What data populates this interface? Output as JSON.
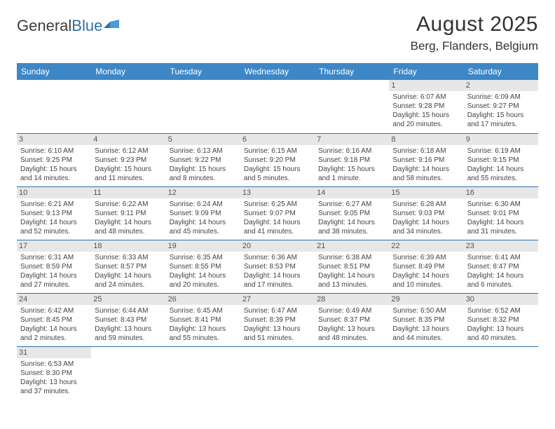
{
  "brand": {
    "name1": "General",
    "name2": "Blue"
  },
  "title": "August 2025",
  "location": "Berg, Flanders, Belgium",
  "colors": {
    "header_bg": "#3d87c7",
    "rule": "#2f6fa7",
    "daybg": "#e7e7e7"
  },
  "weekdays": [
    "Sunday",
    "Monday",
    "Tuesday",
    "Wednesday",
    "Thursday",
    "Friday",
    "Saturday"
  ],
  "startOffset": 5,
  "days": [
    {
      "n": 1,
      "sr": "6:07 AM",
      "ss": "9:28 PM",
      "dl": "15 hours and 20 minutes."
    },
    {
      "n": 2,
      "sr": "6:09 AM",
      "ss": "9:27 PM",
      "dl": "15 hours and 17 minutes."
    },
    {
      "n": 3,
      "sr": "6:10 AM",
      "ss": "9:25 PM",
      "dl": "15 hours and 14 minutes."
    },
    {
      "n": 4,
      "sr": "6:12 AM",
      "ss": "9:23 PM",
      "dl": "15 hours and 11 minutes."
    },
    {
      "n": 5,
      "sr": "6:13 AM",
      "ss": "9:22 PM",
      "dl": "15 hours and 8 minutes."
    },
    {
      "n": 6,
      "sr": "6:15 AM",
      "ss": "9:20 PM",
      "dl": "15 hours and 5 minutes."
    },
    {
      "n": 7,
      "sr": "6:16 AM",
      "ss": "9:18 PM",
      "dl": "15 hours and 1 minute."
    },
    {
      "n": 8,
      "sr": "6:18 AM",
      "ss": "9:16 PM",
      "dl": "14 hours and 58 minutes."
    },
    {
      "n": 9,
      "sr": "6:19 AM",
      "ss": "9:15 PM",
      "dl": "14 hours and 55 minutes."
    },
    {
      "n": 10,
      "sr": "6:21 AM",
      "ss": "9:13 PM",
      "dl": "14 hours and 52 minutes."
    },
    {
      "n": 11,
      "sr": "6:22 AM",
      "ss": "9:11 PM",
      "dl": "14 hours and 48 minutes."
    },
    {
      "n": 12,
      "sr": "6:24 AM",
      "ss": "9:09 PM",
      "dl": "14 hours and 45 minutes."
    },
    {
      "n": 13,
      "sr": "6:25 AM",
      "ss": "9:07 PM",
      "dl": "14 hours and 41 minutes."
    },
    {
      "n": 14,
      "sr": "6:27 AM",
      "ss": "9:05 PM",
      "dl": "14 hours and 38 minutes."
    },
    {
      "n": 15,
      "sr": "6:28 AM",
      "ss": "9:03 PM",
      "dl": "14 hours and 34 minutes."
    },
    {
      "n": 16,
      "sr": "6:30 AM",
      "ss": "9:01 PM",
      "dl": "14 hours and 31 minutes."
    },
    {
      "n": 17,
      "sr": "6:31 AM",
      "ss": "8:59 PM",
      "dl": "14 hours and 27 minutes."
    },
    {
      "n": 18,
      "sr": "6:33 AM",
      "ss": "8:57 PM",
      "dl": "14 hours and 24 minutes."
    },
    {
      "n": 19,
      "sr": "6:35 AM",
      "ss": "8:55 PM",
      "dl": "14 hours and 20 minutes."
    },
    {
      "n": 20,
      "sr": "6:36 AM",
      "ss": "8:53 PM",
      "dl": "14 hours and 17 minutes."
    },
    {
      "n": 21,
      "sr": "6:38 AM",
      "ss": "8:51 PM",
      "dl": "14 hours and 13 minutes."
    },
    {
      "n": 22,
      "sr": "6:39 AM",
      "ss": "8:49 PM",
      "dl": "14 hours and 10 minutes."
    },
    {
      "n": 23,
      "sr": "6:41 AM",
      "ss": "8:47 PM",
      "dl": "14 hours and 6 minutes."
    },
    {
      "n": 24,
      "sr": "6:42 AM",
      "ss": "8:45 PM",
      "dl": "14 hours and 2 minutes."
    },
    {
      "n": 25,
      "sr": "6:44 AM",
      "ss": "8:43 PM",
      "dl": "13 hours and 59 minutes."
    },
    {
      "n": 26,
      "sr": "6:45 AM",
      "ss": "8:41 PM",
      "dl": "13 hours and 55 minutes."
    },
    {
      "n": 27,
      "sr": "6:47 AM",
      "ss": "8:39 PM",
      "dl": "13 hours and 51 minutes."
    },
    {
      "n": 28,
      "sr": "6:49 AM",
      "ss": "8:37 PM",
      "dl": "13 hours and 48 minutes."
    },
    {
      "n": 29,
      "sr": "6:50 AM",
      "ss": "8:35 PM",
      "dl": "13 hours and 44 minutes."
    },
    {
      "n": 30,
      "sr": "6:52 AM",
      "ss": "8:32 PM",
      "dl": "13 hours and 40 minutes."
    },
    {
      "n": 31,
      "sr": "6:53 AM",
      "ss": "8:30 PM",
      "dl": "13 hours and 37 minutes."
    }
  ],
  "labels": {
    "sunrise": "Sunrise:",
    "sunset": "Sunset:",
    "daylight": "Daylight:"
  }
}
